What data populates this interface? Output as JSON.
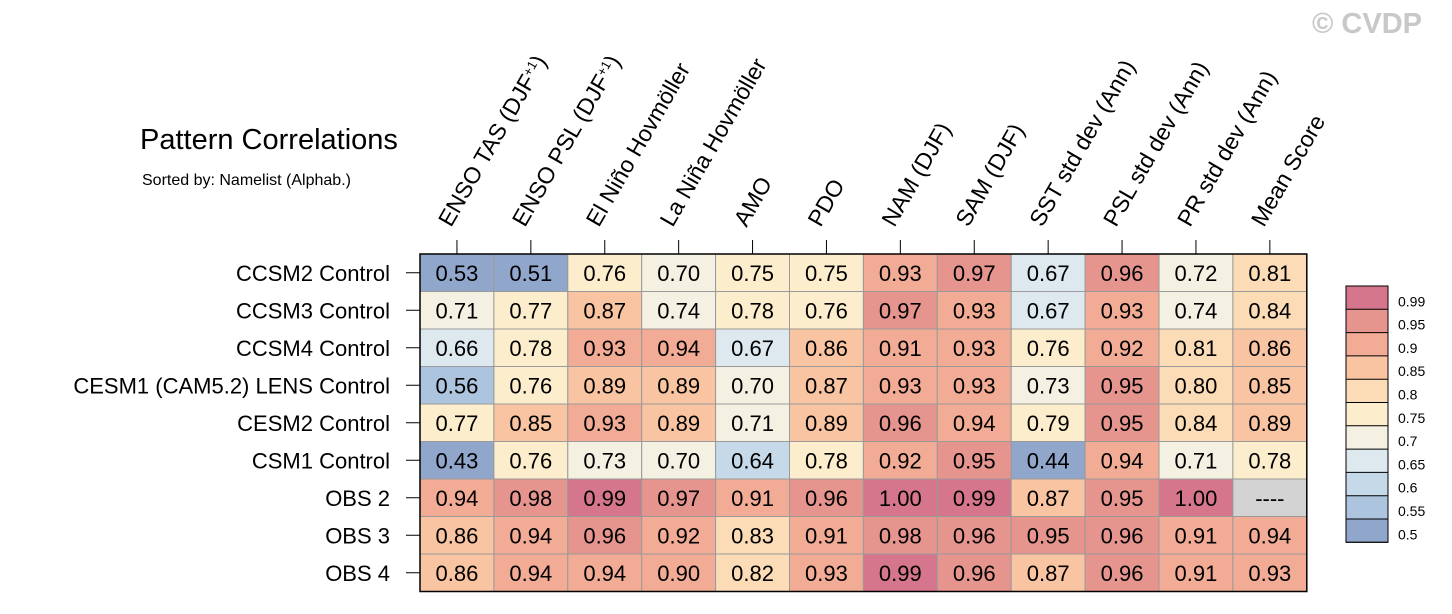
{
  "chart_data": {
    "type": "heatmap",
    "title": "Pattern Correlations",
    "subtitle": "Sorted by: Namelist (Alphab.)",
    "copyright": "© CVDP",
    "columns": [
      "ENSO TAS (DJF+1)",
      "ENSO PSL (DJF+1)",
      "El Niño Hovmöller",
      "La Niña Hovmöller",
      "AMO",
      "PDO",
      "NAM (DJF)",
      "SAM (DJF)",
      "SST std dev (Ann)",
      "PSL std dev (Ann)",
      "PR std dev (Ann)",
      "Mean Score"
    ],
    "rows": [
      "CCSM2 Control",
      "CCSM3 Control",
      "CCSM4 Control",
      "CESM1 (CAM5.2) LENS Control",
      "CESM2 Control",
      "CSM1 Control",
      "OBS 2",
      "OBS 3",
      "OBS 4"
    ],
    "values": [
      [
        "0.53",
        "0.51",
        "0.76",
        "0.70",
        "0.75",
        "0.75",
        "0.93",
        "0.97",
        "0.67",
        "0.96",
        "0.72",
        "0.81"
      ],
      [
        "0.71",
        "0.77",
        "0.87",
        "0.74",
        "0.78",
        "0.76",
        "0.97",
        "0.93",
        "0.67",
        "0.93",
        "0.74",
        "0.84"
      ],
      [
        "0.66",
        "0.78",
        "0.93",
        "0.94",
        "0.67",
        "0.86",
        "0.91",
        "0.93",
        "0.76",
        "0.92",
        "0.81",
        "0.86"
      ],
      [
        "0.56",
        "0.76",
        "0.89",
        "0.89",
        "0.70",
        "0.87",
        "0.93",
        "0.93",
        "0.73",
        "0.95",
        "0.80",
        "0.85"
      ],
      [
        "0.77",
        "0.85",
        "0.93",
        "0.89",
        "0.71",
        "0.89",
        "0.96",
        "0.94",
        "0.79",
        "0.95",
        "0.84",
        "0.89"
      ],
      [
        "0.43",
        "0.76",
        "0.73",
        "0.70",
        "0.64",
        "0.78",
        "0.92",
        "0.95",
        "0.44",
        "0.94",
        "0.71",
        "0.78"
      ],
      [
        "0.94",
        "0.98",
        "0.99",
        "0.97",
        "0.91",
        "0.96",
        "1.00",
        "0.99",
        "0.87",
        "0.95",
        "1.00",
        "----"
      ],
      [
        "0.86",
        "0.94",
        "0.96",
        "0.92",
        "0.83",
        "0.91",
        "0.98",
        "0.96",
        "0.95",
        "0.96",
        "0.91",
        "0.94"
      ],
      [
        "0.86",
        "0.94",
        "0.94",
        "0.90",
        "0.82",
        "0.93",
        "0.99",
        "0.96",
        "0.87",
        "0.96",
        "0.91",
        "0.93"
      ]
    ],
    "missing_label": "----",
    "colorbar": {
      "levels": [
        "0.99",
        "0.95",
        "0.9",
        "0.85",
        "0.8",
        "0.75",
        "0.7",
        "0.65",
        "0.6",
        "0.55",
        "0.5"
      ],
      "colors": [
        "#d6768c",
        "#e5948e",
        "#f2ab94",
        "#f9c4a1",
        "#fbdcb6",
        "#fcedcc",
        "#f4f1e2",
        "#dde9ef",
        "#c5d9e8",
        "#adc4de",
        "#91a6cb"
      ],
      "missing_color": "#d3d3d3"
    }
  }
}
